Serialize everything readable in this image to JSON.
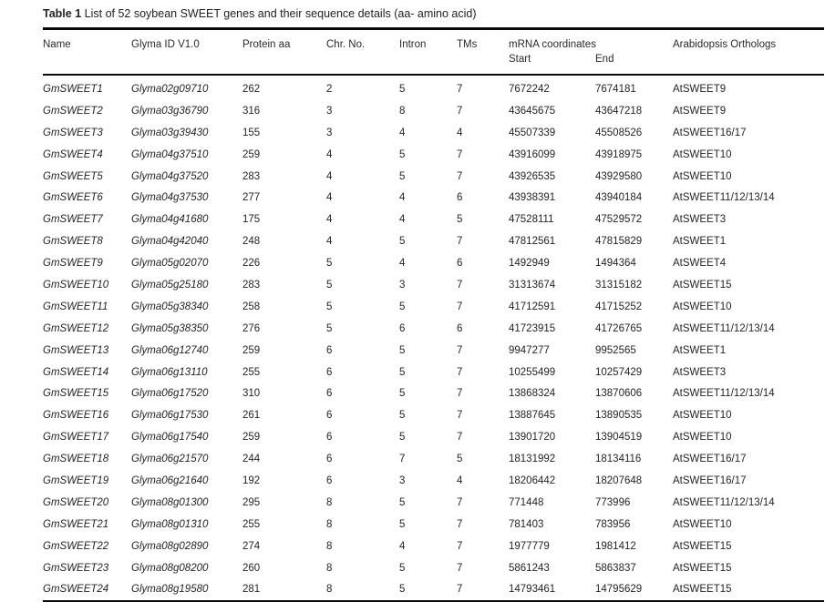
{
  "table": {
    "title_label": "Table 1",
    "title_text": "List of 52 soybean SWEET genes and their sequence details (aa- amino acid)",
    "headers": {
      "name": "Name",
      "glyma_id": "Glyma ID V1.0",
      "protein_aa": "Protein aa",
      "chr_no": "Chr. No.",
      "intron": "Intron",
      "tms": "TMs",
      "mrna_coordinates": "mRNA coordinates",
      "start": "Start",
      "end": "End",
      "orthologs": "Arabidopsis Orthologs"
    },
    "rows": [
      [
        "GmSWEET1",
        "Glyma02g09710",
        "262",
        "2",
        "5",
        "7",
        "7672242",
        "7674181",
        "AtSWEET9"
      ],
      [
        "GmSWEET2",
        "Glyma03g36790",
        "316",
        "3",
        "8",
        "7",
        "43645675",
        "43647218",
        "AtSWEET9"
      ],
      [
        "GmSWEET3",
        "Glyma03g39430",
        "155",
        "3",
        "4",
        "4",
        "45507339",
        "45508526",
        "AtSWEET16/17"
      ],
      [
        "GmSWEET4",
        "Glyma04g37510",
        "259",
        "4",
        "5",
        "7",
        "43916099",
        "43918975",
        "AtSWEET10"
      ],
      [
        "GmSWEET5",
        "Glyma04g37520",
        "283",
        "4",
        "5",
        "7",
        "43926535",
        "43929580",
        "AtSWEET10"
      ],
      [
        "GmSWEET6",
        "Glyma04g37530",
        "277",
        "4",
        "4",
        "6",
        "43938391",
        "43940184",
        "AtSWEET11/12/13/14"
      ],
      [
        "GmSWEET7",
        "Glyma04g41680",
        "175",
        "4",
        "4",
        "5",
        "47528111",
        "47529572",
        "AtSWEET3"
      ],
      [
        "GmSWEET8",
        "Glyma04g42040",
        "248",
        "4",
        "5",
        "7",
        "47812561",
        "47815829",
        "AtSWEET1"
      ],
      [
        "GmSWEET9",
        "Glyma05g02070",
        "226",
        "5",
        "4",
        "6",
        "1492949",
        "1494364",
        "AtSWEET4"
      ],
      [
        "GmSWEET10",
        "Glyma05g25180",
        "283",
        "5",
        "3",
        "7",
        "31313674",
        "31315182",
        "AtSWEET15"
      ],
      [
        "GmSWEET11",
        "Glyma05g38340",
        "258",
        "5",
        "5",
        "7",
        "41712591",
        "41715252",
        "AtSWEET10"
      ],
      [
        "GmSWEET12",
        "Glyma05g38350",
        "276",
        "5",
        "6",
        "6",
        "41723915",
        "41726765",
        "AtSWEET11/12/13/14"
      ],
      [
        "GmSWEET13",
        "Glyma06g12740",
        "259",
        "6",
        "5",
        "7",
        "9947277",
        "9952565",
        "AtSWEET1"
      ],
      [
        "GmSWEET14",
        "Glyma06g13110",
        "255",
        "6",
        "5",
        "7",
        "10255499",
        "10257429",
        "AtSWEET3"
      ],
      [
        "GmSWEET15",
        "Glyma06g17520",
        "310",
        "6",
        "5",
        "7",
        "13868324",
        "13870606",
        "AtSWEET11/12/13/14"
      ],
      [
        "GmSWEET16",
        "Glyma06g17530",
        "261",
        "6",
        "5",
        "7",
        "13887645",
        "13890535",
        "AtSWEET10"
      ],
      [
        "GmSWEET17",
        "Glyma06g17540",
        "259",
        "6",
        "5",
        "7",
        "13901720",
        "13904519",
        "AtSWEET10"
      ],
      [
        "GmSWEET18",
        "Glyma06g21570",
        "244",
        "6",
        "7",
        "5",
        "18131992",
        "18134116",
        "AtSWEET16/17"
      ],
      [
        "GmSWEET19",
        "Glyma06g21640",
        "192",
        "6",
        "3",
        "4",
        "18206442",
        "18207648",
        "AtSWEET16/17"
      ],
      [
        "GmSWEET20",
        "Glyma08g01300",
        "295",
        "8",
        "5",
        "7",
        "771448",
        "773996",
        "AtSWEET11/12/13/14"
      ],
      [
        "GmSWEET21",
        "Glyma08g01310",
        "255",
        "8",
        "5",
        "7",
        "781403",
        "783956",
        "AtSWEET10"
      ],
      [
        "GmSWEET22",
        "Glyma08g02890",
        "274",
        "8",
        "4",
        "7",
        "1977779",
        "1981412",
        "AtSWEET15"
      ],
      [
        "GmSWEET23",
        "Glyma08g08200",
        "260",
        "8",
        "5",
        "7",
        "5861243",
        "5863837",
        "AtSWEET15"
      ],
      [
        "GmSWEET24",
        "Glyma08g19580",
        "281",
        "8",
        "5",
        "7",
        "14793461",
        "14795629",
        "AtSWEET15"
      ]
    ]
  }
}
